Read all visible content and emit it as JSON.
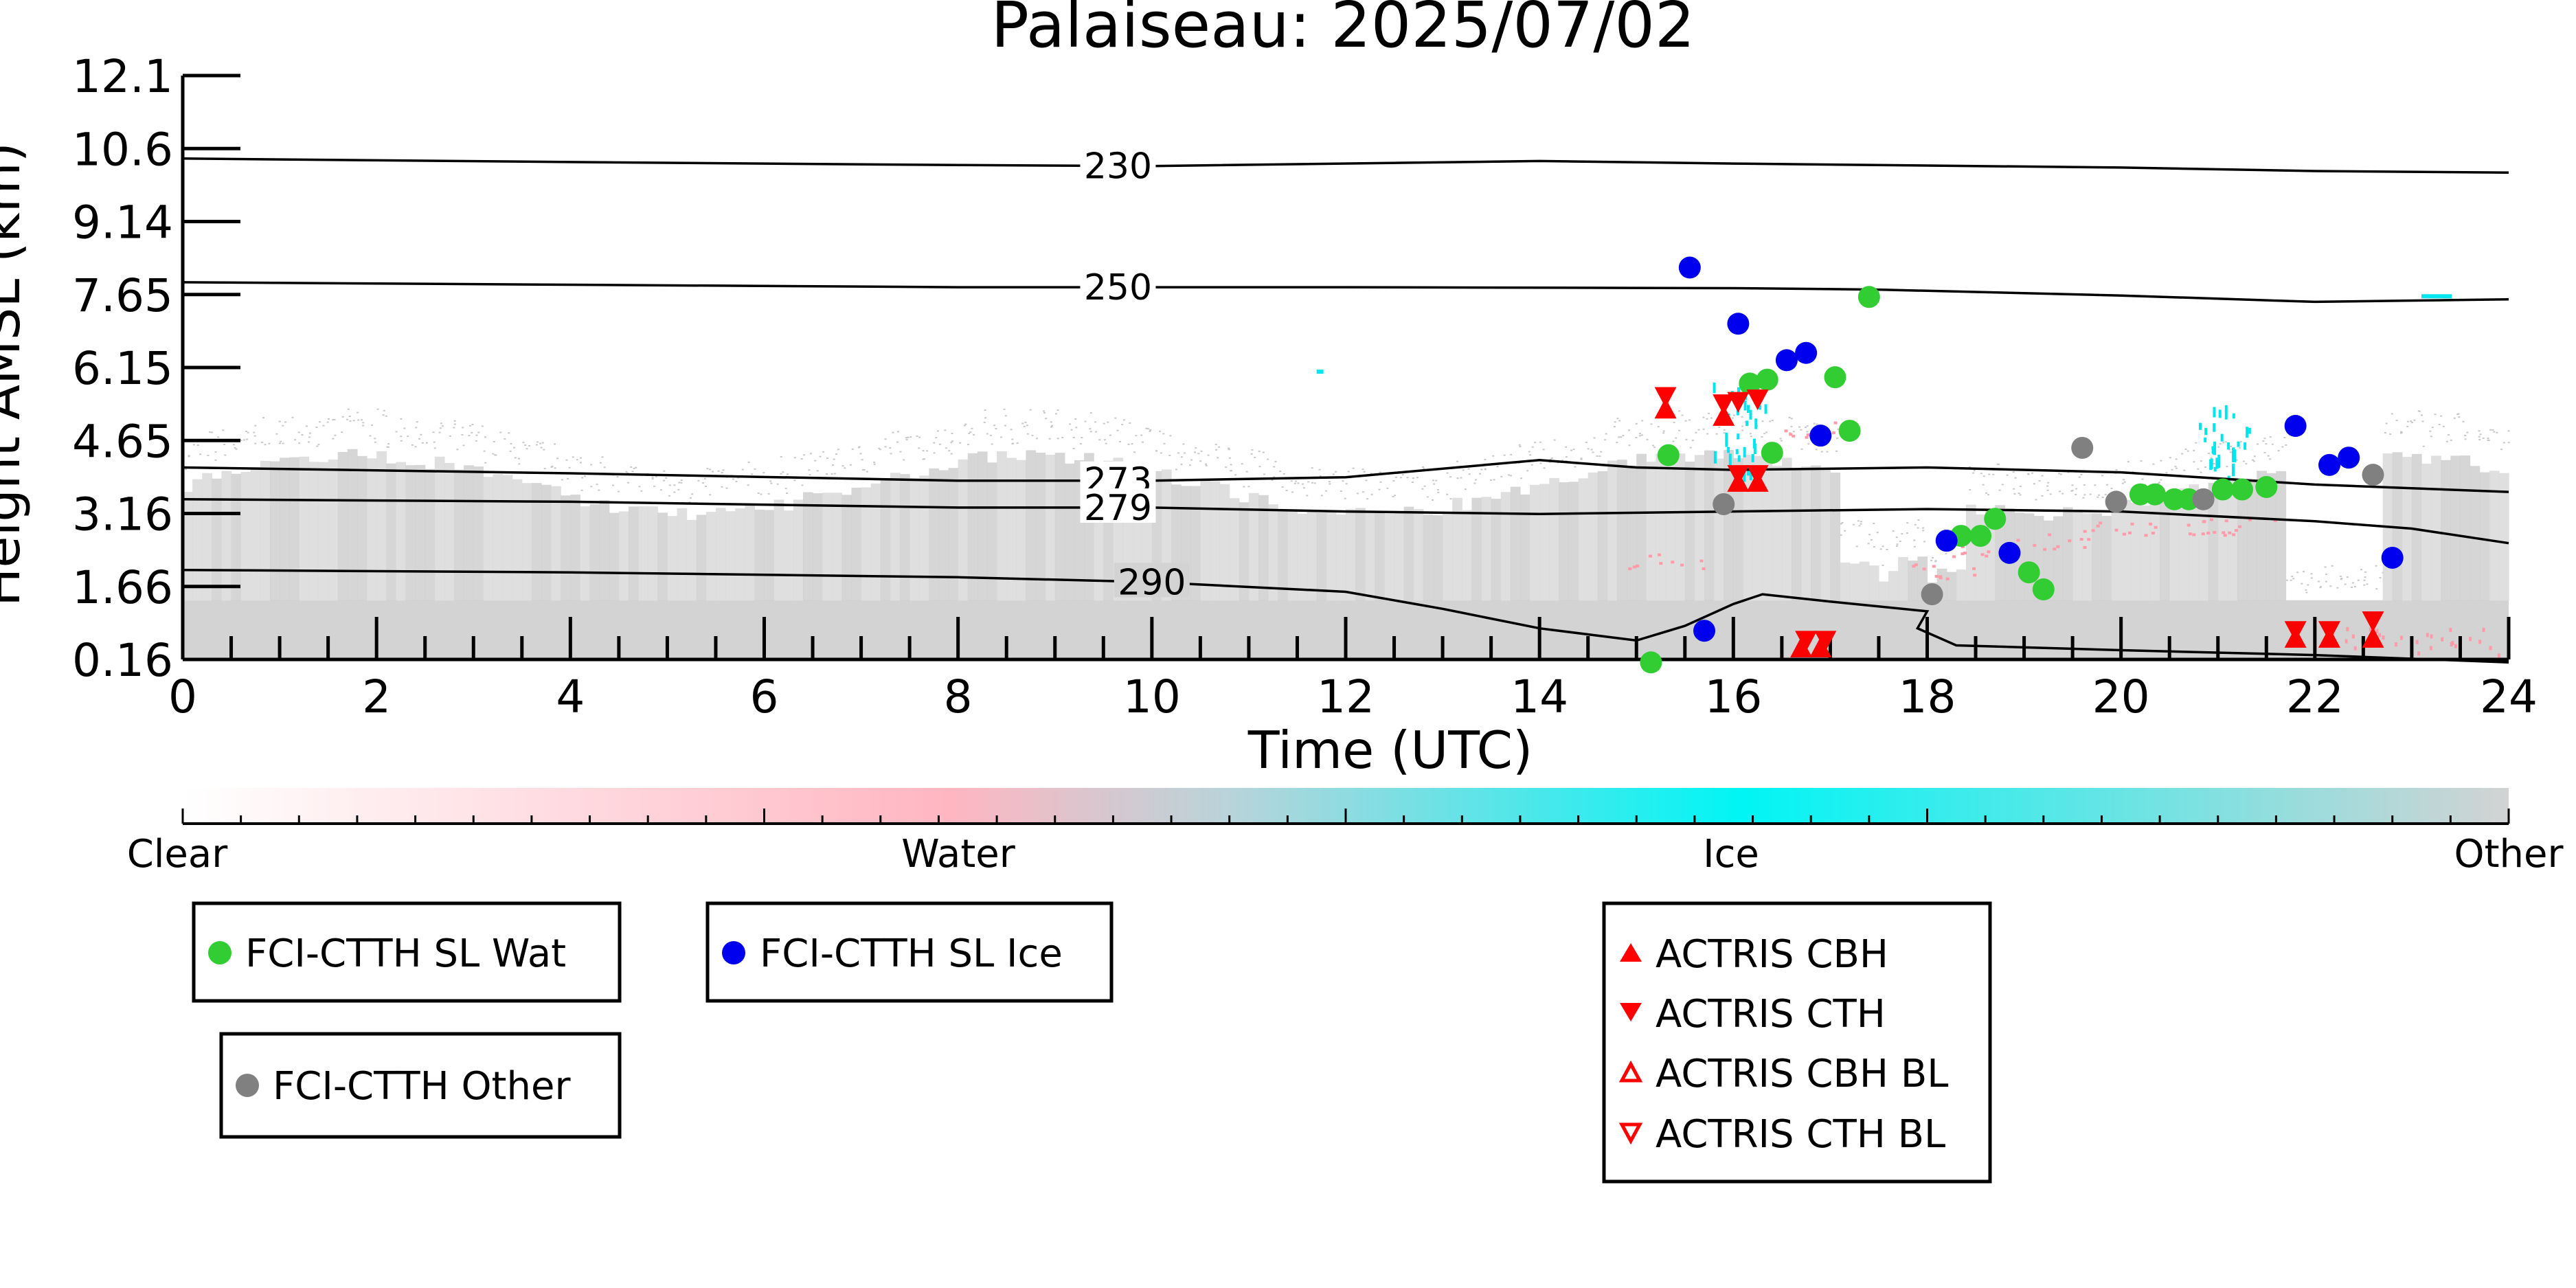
{
  "chart_data": {
    "type": "scatter",
    "title": "Palaiseau: 2025/07/02",
    "xlabel": "Time (UTC)",
    "ylabel": "Height AMSL (km)",
    "xlim": [
      0,
      24
    ],
    "y_tick_labels": [
      "0.16",
      "1.66",
      "3.16",
      "4.65",
      "6.15",
      "7.65",
      "9.14",
      "10.6",
      "12.1"
    ],
    "x_tick_labels": [
      "0",
      "2",
      "4",
      "6",
      "8",
      "10",
      "12",
      "14",
      "16",
      "18",
      "20",
      "22",
      "24"
    ],
    "y_axis_note": "Tick labels are evenly spaced; values are read in tick-label units",
    "colorbar": {
      "labels": [
        "Clear",
        "Water",
        "Ice",
        "Other"
      ],
      "colors": [
        "#ffffff",
        "#ffb6c1",
        "#00f5f5",
        "#d3d3d3"
      ]
    },
    "temperature_contours": [
      {
        "label": "230",
        "points": [
          [
            0,
            10.4
          ],
          [
            4,
            10.33
          ],
          [
            8,
            10.27
          ],
          [
            10,
            10.25
          ],
          [
            14,
            10.35
          ],
          [
            16,
            10.3
          ],
          [
            20,
            10.22
          ],
          [
            22,
            10.15
          ],
          [
            24,
            10.12
          ]
        ]
      },
      {
        "label": "250",
        "points": [
          [
            0,
            7.9
          ],
          [
            4,
            7.85
          ],
          [
            8,
            7.8
          ],
          [
            12,
            7.8
          ],
          [
            16,
            7.78
          ],
          [
            17.5,
            7.75
          ],
          [
            20,
            7.63
          ],
          [
            22,
            7.5
          ],
          [
            24,
            7.55
          ]
        ]
      },
      {
        "label": "273",
        "points": [
          [
            0,
            4.1
          ],
          [
            4,
            3.98
          ],
          [
            8,
            3.83
          ],
          [
            10,
            3.83
          ],
          [
            12,
            3.9
          ],
          [
            14,
            4.25
          ],
          [
            15,
            4.1
          ],
          [
            16,
            4.05
          ],
          [
            18,
            4.1
          ],
          [
            20,
            4.0
          ],
          [
            22,
            3.75
          ],
          [
            24,
            3.6
          ]
        ]
      },
      {
        "label": "279",
        "points": [
          [
            0,
            3.45
          ],
          [
            4,
            3.4
          ],
          [
            8,
            3.28
          ],
          [
            10,
            3.28
          ],
          [
            12,
            3.2
          ],
          [
            14,
            3.15
          ],
          [
            16,
            3.2
          ],
          [
            18,
            3.25
          ],
          [
            20,
            3.2
          ],
          [
            22,
            3.0
          ],
          [
            23,
            2.85
          ],
          [
            24,
            2.55
          ]
        ]
      },
      {
        "label": "290",
        "points": [
          [
            0,
            2.0
          ],
          [
            4,
            1.95
          ],
          [
            8,
            1.85
          ],
          [
            10,
            1.75
          ],
          [
            12,
            1.55
          ],
          [
            13,
            1.2
          ],
          [
            14,
            0.8
          ],
          [
            15,
            0.55
          ],
          [
            15.5,
            0.85
          ],
          [
            16,
            1.3
          ],
          [
            16.3,
            1.5
          ],
          [
            17,
            1.35
          ],
          [
            18,
            1.15
          ],
          [
            17.9,
            0.8
          ],
          [
            18.3,
            0.45
          ],
          [
            20,
            0.35
          ],
          [
            22,
            0.25
          ],
          [
            24,
            0.1
          ]
        ]
      }
    ],
    "series": [
      {
        "name": "FCI-CTTH SL Wat",
        "color": "#32cd32",
        "marker": "circle",
        "points": [
          [
            15.33,
            4.35
          ],
          [
            16.17,
            5.82
          ],
          [
            16.35,
            5.9
          ],
          [
            16.4,
            4.4
          ],
          [
            17.05,
            5.95
          ],
          [
            17.2,
            4.85
          ],
          [
            17.4,
            7.6
          ],
          [
            15.15,
            0.1
          ],
          [
            18.35,
            2.7
          ],
          [
            18.55,
            2.7
          ],
          [
            18.7,
            3.05
          ],
          [
            19.05,
            1.95
          ],
          [
            19.2,
            1.6
          ],
          [
            20.2,
            3.55
          ],
          [
            20.35,
            3.55
          ],
          [
            20.55,
            3.45
          ],
          [
            20.7,
            3.45
          ],
          [
            21.05,
            3.65
          ],
          [
            21.25,
            3.65
          ],
          [
            21.5,
            3.7
          ]
        ]
      },
      {
        "name": "FCI-CTTH SL Ice",
        "color": "#0000ee",
        "marker": "circle",
        "points": [
          [
            15.55,
            8.2
          ],
          [
            16.05,
            7.05
          ],
          [
            16.55,
            6.3
          ],
          [
            16.75,
            6.45
          ],
          [
            16.9,
            4.75
          ],
          [
            18.2,
            2.6
          ],
          [
            18.85,
            2.35
          ],
          [
            21.8,
            4.95
          ],
          [
            22.15,
            4.15
          ],
          [
            22.35,
            4.3
          ],
          [
            22.8,
            2.25
          ],
          [
            15.7,
            0.75
          ]
        ]
      },
      {
        "name": "FCI-CTTH Other",
        "color": "#808080",
        "marker": "circle",
        "points": [
          [
            15.9,
            3.35
          ],
          [
            18.05,
            1.5
          ],
          [
            19.6,
            4.5
          ],
          [
            19.95,
            3.4
          ],
          [
            20.85,
            3.45
          ],
          [
            22.6,
            3.95
          ]
        ]
      },
      {
        "name": "ACTRIS CBH",
        "color": "#ff0000",
        "marker": "triangle-up",
        "points": [
          [
            15.3,
            5.3
          ],
          [
            15.9,
            5.15
          ],
          [
            16.05,
            3.8
          ],
          [
            16.25,
            3.8
          ],
          [
            16.7,
            0.4
          ],
          [
            16.9,
            0.4
          ],
          [
            21.8,
            0.6
          ],
          [
            22.15,
            0.6
          ],
          [
            22.6,
            0.6
          ]
        ]
      },
      {
        "name": "ACTRIS CTH",
        "color": "#ff0000",
        "marker": "triangle-down",
        "points": [
          [
            15.3,
            5.55
          ],
          [
            15.9,
            5.4
          ],
          [
            16.05,
            5.45
          ],
          [
            16.25,
            5.5
          ],
          [
            16.05,
            3.95
          ],
          [
            16.25,
            3.95
          ],
          [
            16.75,
            0.55
          ],
          [
            16.95,
            0.55
          ],
          [
            21.8,
            0.75
          ],
          [
            22.15,
            0.75
          ],
          [
            22.6,
            0.95
          ]
        ]
      },
      {
        "name": "ACTRIS CBH BL",
        "color": "#ff0000",
        "marker": "triangle-up-open",
        "points": []
      },
      {
        "name": "ACTRIS CTH BL",
        "color": "#ff0000",
        "marker": "triangle-down-open",
        "points": []
      }
    ],
    "grid": false,
    "legend_placement": "below plot"
  }
}
